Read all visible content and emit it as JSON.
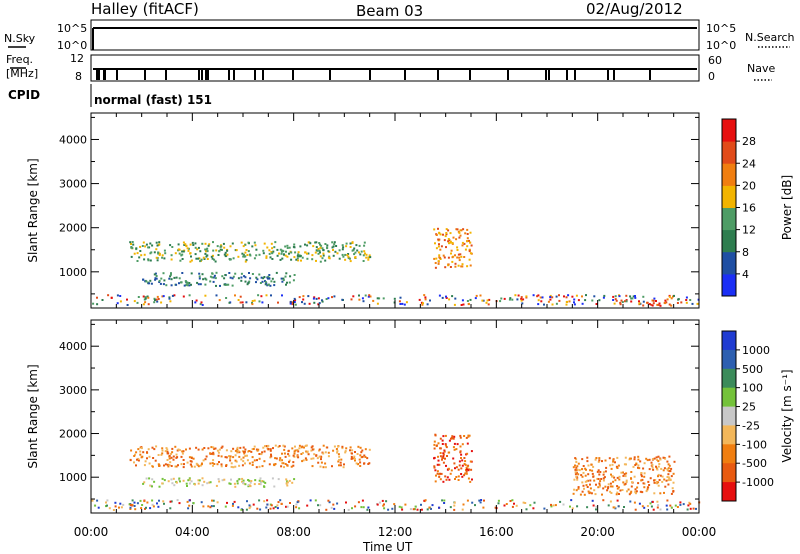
{
  "header": {
    "station": "Halley (fitACF)",
    "beam": "Beam 03",
    "date": "02/Aug/2012"
  },
  "left_labels": {
    "nsky": "N.Sky",
    "freq_top": "Freq.",
    "freq_unit": "[MHz]",
    "cpid": "CPID"
  },
  "right_labels": {
    "nsearch": "N.Search",
    "nave": "Nave"
  },
  "strip_ticks": {
    "noise_top_left": "10^5",
    "noise_bottom_left": "10^0",
    "noise_top_right": "10^5",
    "noise_bottom_right": "10^0",
    "freq_top_left": "12",
    "freq_bottom_left": "8",
    "nave_top_right": "60",
    "nave_bottom_right": "0"
  },
  "cpid_text": "normal (fast) 151",
  "chart_data": [
    {
      "type": "heatmap",
      "parameter": "Power",
      "ylabel": "Slant Range [km]",
      "ylim": [
        180,
        4600
      ],
      "yticks": [
        1000,
        2000,
        3000,
        4000
      ],
      "colorbar_label": "Power [dB]",
      "colorbar_ticks": [
        "4",
        "8",
        "12",
        "16",
        "20",
        "24",
        "28"
      ],
      "colorbar_colors": [
        "#1b2ff5",
        "#1f4fa3",
        "#2e7d4f",
        "#4e9c65",
        "#f2b400",
        "#f07e10",
        "#e14b1a",
        "#e60f0f"
      ],
      "xlim_hours": [
        0,
        24
      ],
      "regions": [
        {
          "x": [
            1.5,
            11
          ],
          "range": [
            1250,
            1700
          ],
          "dB": 16
        },
        {
          "x": [
            2,
            8
          ],
          "range": [
            700,
            1000
          ],
          "dB": 12
        },
        {
          "x": [
            13.5,
            15
          ],
          "range": [
            1100,
            2000
          ],
          "dB": 24
        },
        {
          "x": [
            21,
            23
          ],
          "range": [
            250,
            400
          ],
          "dB": 28
        }
      ]
    },
    {
      "type": "heatmap",
      "parameter": "Velocity",
      "ylabel": "Slant Range [km]",
      "ylim": [
        180,
        4600
      ],
      "yticks": [
        1000,
        2000,
        3000,
        4000
      ],
      "colorbar_label": "Velocity [m s⁻¹]",
      "colorbar_ticks": [
        "1000",
        "500",
        "100",
        "25",
        "-25",
        "-100",
        "-500",
        "-1000"
      ],
      "colorbar_colors": [
        "#1f3bd1",
        "#2d5fb0",
        "#3b8b5a",
        "#74c23a",
        "#c8c8c8",
        "#f3b75a",
        "#f07e10",
        "#e85a10",
        "#e60f0f"
      ],
      "xlim_hours": [
        0,
        24
      ],
      "regions": [
        {
          "x": [
            1.5,
            11
          ],
          "range": [
            1250,
            1750
          ],
          "velocity": -100
        },
        {
          "x": [
            2,
            8
          ],
          "range": [
            800,
            1000
          ],
          "velocity": 0
        },
        {
          "x": [
            13.5,
            15
          ],
          "range": [
            900,
            2000
          ],
          "velocity": -500
        },
        {
          "x": [
            19,
            23
          ],
          "range": [
            600,
            1500
          ],
          "velocity": -100
        }
      ]
    }
  ],
  "x_axis": {
    "label": "Time UT",
    "ticks": [
      "00:00",
      "04:00",
      "08:00",
      "12:00",
      "16:00",
      "20:00",
      "00:00"
    ]
  }
}
